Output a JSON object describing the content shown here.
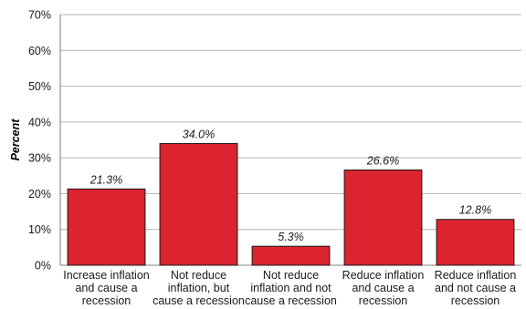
{
  "chart_data": {
    "type": "bar",
    "categories": [
      [
        "Increase inflation",
        "and cause a",
        "recession"
      ],
      [
        "Not reduce",
        "inflation, but",
        "cause a recession"
      ],
      [
        "Not reduce",
        "inflation and not",
        "cause a recession"
      ],
      [
        "Reduce inflation",
        "and cause a",
        "recession"
      ],
      [
        "Reduce inflation",
        "and not cause a",
        "recession"
      ]
    ],
    "values": [
      21.3,
      34.0,
      5.3,
      26.6,
      12.8
    ],
    "data_labels": [
      "21.3%",
      "34.0%",
      "5.3%",
      "26.6%",
      "12.8%"
    ],
    "ylabel": "Percent",
    "ylim": [
      0,
      70
    ],
    "yticks": [
      "0%",
      "10%",
      "20%",
      "30%",
      "40%",
      "50%",
      "60%",
      "70%"
    ],
    "grid": true,
    "colors": {
      "bar": "#dc2430",
      "bar_edge": "#1a1a1a",
      "grid": "#b3b3b3",
      "axis": "#808080"
    }
  }
}
